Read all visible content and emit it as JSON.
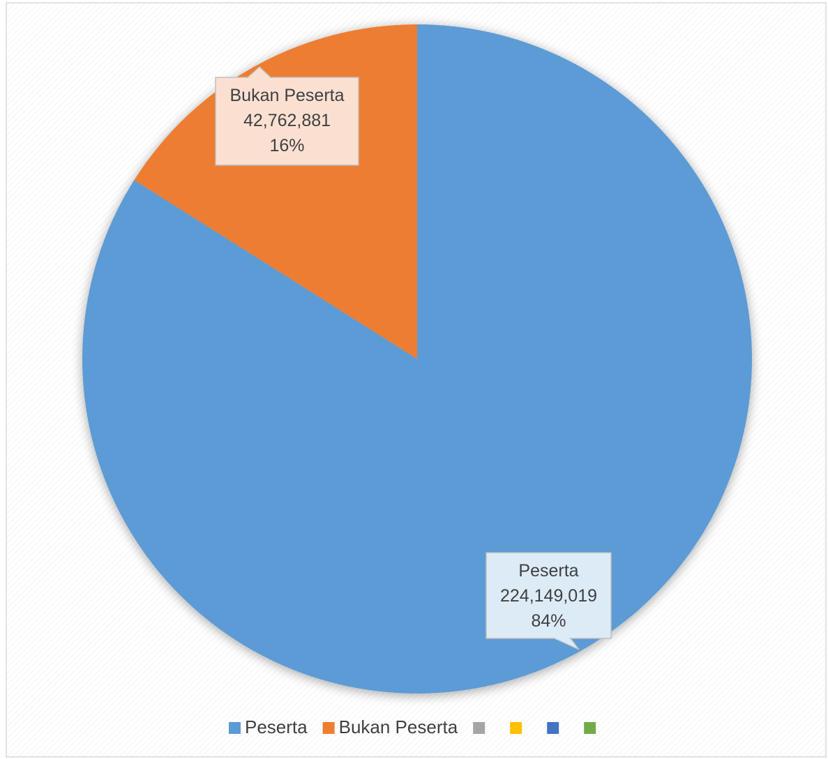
{
  "chart_data": {
    "type": "pie",
    "title": "",
    "slices": [
      {
        "label": "Peserta",
        "value": 224149019,
        "value_label": "224,149,019",
        "percent_label": "84%",
        "color": "#5B9BD5",
        "callout_bg": "#DDEBF7"
      },
      {
        "label": "Bukan Peserta",
        "value": 42762881,
        "value_label": "42,762,881",
        "percent_label": "16%",
        "color": "#ED7D31",
        "callout_bg": "#FBE0D2"
      }
    ],
    "legend": {
      "placement": "bottom",
      "entries": [
        {
          "label": "Peserta",
          "color": "#5B9BD5"
        },
        {
          "label": "Bukan Peserta",
          "color": "#ED7D31"
        },
        {
          "label": "",
          "color": "#A5A5A5"
        },
        {
          "label": "",
          "color": "#FFC000"
        },
        {
          "label": "",
          "color": "#4472C4"
        },
        {
          "label": "",
          "color": "#70AD47"
        }
      ]
    }
  }
}
